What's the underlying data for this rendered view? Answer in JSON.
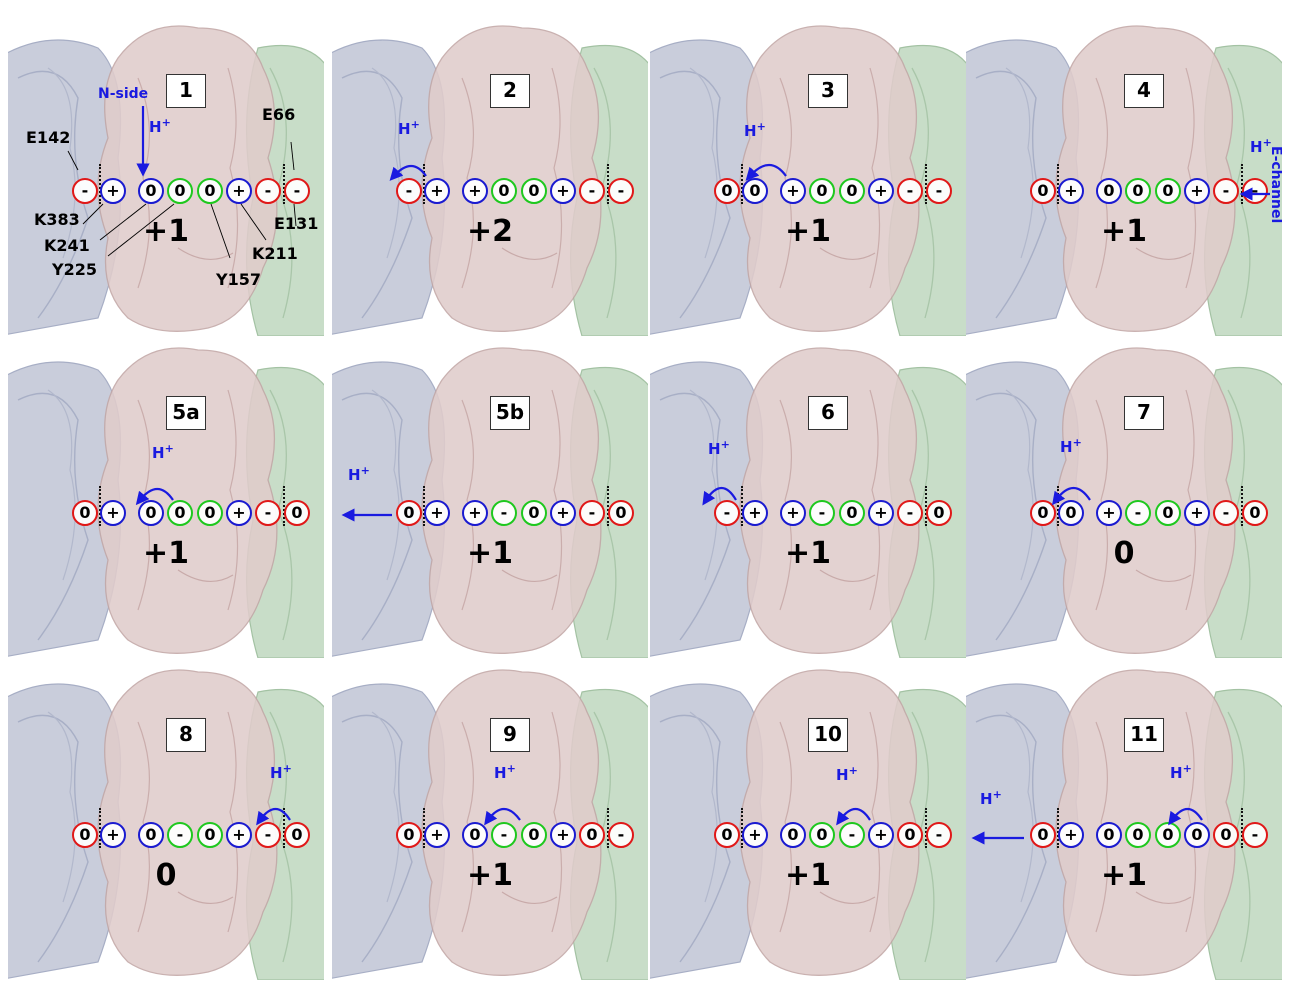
{
  "colors": {
    "acidic": "#e01818",
    "basic": "#1a1ad0",
    "tyrosine": "#1ec81e",
    "annotation": "#1a1ae0"
  },
  "residue_colors": [
    "red",
    "blue",
    "blue",
    "green",
    "green",
    "blue",
    "red",
    "red"
  ],
  "labels": {
    "n_side": "N-side",
    "e_channel": "E-channel",
    "h_plus": "H",
    "h_sup": "+",
    "E142": "E142",
    "K383": "K383",
    "K241": "K241",
    "Y225": "Y225",
    "Y157": "Y157",
    "K211": "K211",
    "E131": "E131",
    "E66": "E66"
  },
  "panels": [
    {
      "num": "1",
      "states": [
        "-",
        "+",
        "0",
        "0",
        "0",
        "+",
        "-",
        "-"
      ],
      "charge": "+1"
    },
    {
      "num": "2",
      "states": [
        "-",
        "+",
        "+",
        "0",
        "0",
        "+",
        "-",
        "-"
      ],
      "charge": "+2"
    },
    {
      "num": "3",
      "states": [
        "0",
        "0",
        "+",
        "0",
        "0",
        "+",
        "-",
        "-"
      ],
      "charge": "+1"
    },
    {
      "num": "4",
      "states": [
        "0",
        "+",
        "0",
        "0",
        "0",
        "+",
        "-",
        "-"
      ],
      "charge": "+1"
    },
    {
      "num": "5a",
      "states": [
        "0",
        "+",
        "0",
        "0",
        "0",
        "+",
        "-",
        "0"
      ],
      "charge": "+1"
    },
    {
      "num": "5b",
      "states": [
        "0",
        "+",
        "+",
        "-",
        "0",
        "+",
        "-",
        "0"
      ],
      "charge": "+1"
    },
    {
      "num": "6",
      "states": [
        "-",
        "+",
        "+",
        "-",
        "0",
        "+",
        "-",
        "0"
      ],
      "charge": "+1"
    },
    {
      "num": "7",
      "states": [
        "0",
        "0",
        "+",
        "-",
        "0",
        "+",
        "-",
        "0"
      ],
      "charge": "0"
    },
    {
      "num": "8",
      "states": [
        "0",
        "+",
        "0",
        "-",
        "0",
        "+",
        "-",
        "0"
      ],
      "charge": "0"
    },
    {
      "num": "9",
      "states": [
        "0",
        "+",
        "0",
        "-",
        "0",
        "+",
        "0",
        "-"
      ],
      "charge": "+1"
    },
    {
      "num": "10",
      "states": [
        "0",
        "+",
        "0",
        "0",
        "-",
        "+",
        "0",
        "-"
      ],
      "charge": "+1"
    },
    {
      "num": "11",
      "states": [
        "0",
        "+",
        "0",
        "0",
        "0",
        "0",
        "0",
        "-"
      ],
      "charge": "+1"
    }
  ]
}
